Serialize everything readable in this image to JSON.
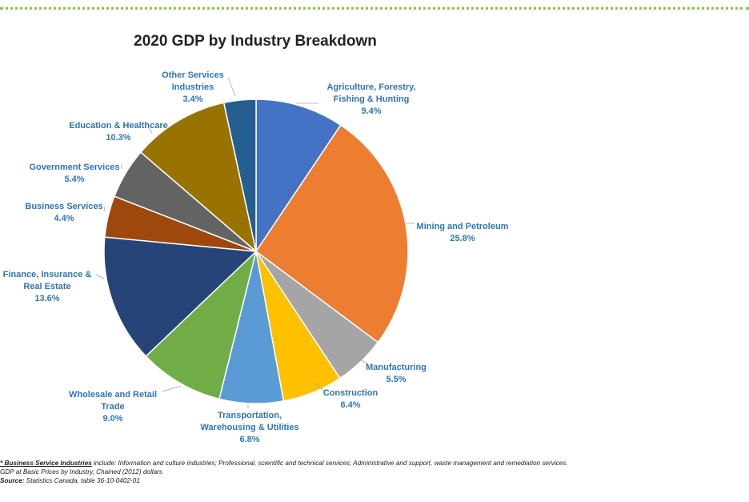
{
  "chart_data": {
    "type": "pie",
    "title": "2020 GDP by Industry Breakdown",
    "slices": [
      {
        "label": [
          "Agriculture, Forestry,",
          "Fishing & Hunting"
        ],
        "value": 9.4,
        "value_label": "9.4%",
        "color": "#4472c4"
      },
      {
        "label": [
          "Mining and Petroleum"
        ],
        "value": 25.8,
        "value_label": "25.8%",
        "color": "#ed7d31"
      },
      {
        "label": [
          "Manufacturing"
        ],
        "value": 5.5,
        "value_label": "5.5%",
        "color": "#a5a5a5"
      },
      {
        "label": [
          "Construction"
        ],
        "value": 6.4,
        "value_label": "6.4%",
        "color": "#ffc000"
      },
      {
        "label": [
          "Transportation,",
          "Warehousing & Utilities"
        ],
        "value": 6.8,
        "value_label": "6.8%",
        "color": "#5b9bd5"
      },
      {
        "label": [
          "Wholesale and Retail",
          "Trade"
        ],
        "value": 9.0,
        "value_label": "9.0%",
        "color": "#70ad47"
      },
      {
        "label": [
          "Finance, Insurance &",
          "Real Estate"
        ],
        "value": 13.6,
        "value_label": "13.6%",
        "color": "#264478"
      },
      {
        "label": [
          "Business Services"
        ],
        "value": 4.4,
        "value_label": "4.4%",
        "color": "#9e480e"
      },
      {
        "label": [
          "Government Services"
        ],
        "value": 5.4,
        "value_label": "5.4%",
        "color": "#636363"
      },
      {
        "label": [
          "Education & Healthcare"
        ],
        "value": 10.3,
        "value_label": "10.3%",
        "color": "#997300"
      },
      {
        "label": [
          "Other Services",
          "Industries"
        ],
        "value": 3.4,
        "value_label": "3.4%",
        "color": "#255e91"
      }
    ],
    "label_color": "#2e75b6"
  },
  "footnotes": {
    "business_prefix": "* ",
    "business_term": "Business Service Industries",
    "business_text": " include: Information and culture industries; Professional, scientific and technical services; Administrative and support, waste management and remediation services.",
    "gdp_note": "GDP at Basic Prices by Industry, Chained (2012) dollars",
    "source_label": "Source:",
    "source_text": " Statistics Canada, table 36-10-0402-01"
  }
}
